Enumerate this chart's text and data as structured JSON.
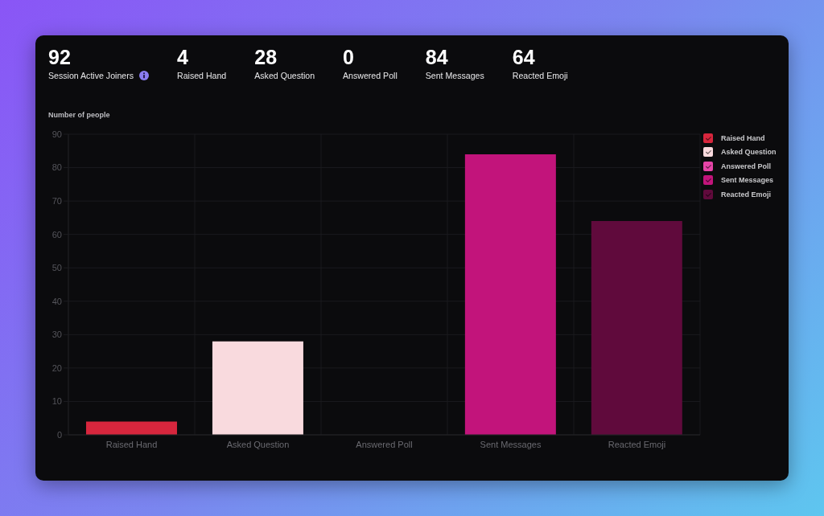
{
  "chart_data": {
    "type": "bar",
    "annotations": [
      "92",
      "Session Active Joiners",
      "4",
      "Raised Hand",
      "28",
      "Asked Question",
      "0",
      "Answered Poll",
      "84",
      "Sent Messages",
      "64",
      "Reacted Emoji"
    ],
    "ylabel": "Number of people",
    "categories": [
      "Raised Hand",
      "Asked Question",
      "Answered Poll",
      "Sent Messages",
      "Reacted Emoji"
    ],
    "series": [
      {
        "name": "Raised Hand",
        "color": "#d7263d",
        "values": [
          4,
          null,
          null,
          null,
          null
        ]
      },
      {
        "name": "Asked Question",
        "color": "#f9dade",
        "values": [
          null,
          28,
          null,
          null,
          null
        ]
      },
      {
        "name": "Answered Poll",
        "color": "#e645a8",
        "values": [
          null,
          null,
          0,
          null,
          null
        ]
      },
      {
        "name": "Sent Messages",
        "color": "#c2147b",
        "values": [
          null,
          null,
          null,
          84,
          null
        ]
      },
      {
        "name": "Reacted Emoji",
        "color": "#600a3c",
        "values": [
          null,
          null,
          null,
          null,
          64
        ]
      }
    ],
    "ylim": [
      0,
      90
    ],
    "yticks": [
      0,
      10,
      20,
      30,
      40,
      50,
      60,
      70,
      80,
      90
    ],
    "grid": true,
    "legend": "top right"
  }
}
